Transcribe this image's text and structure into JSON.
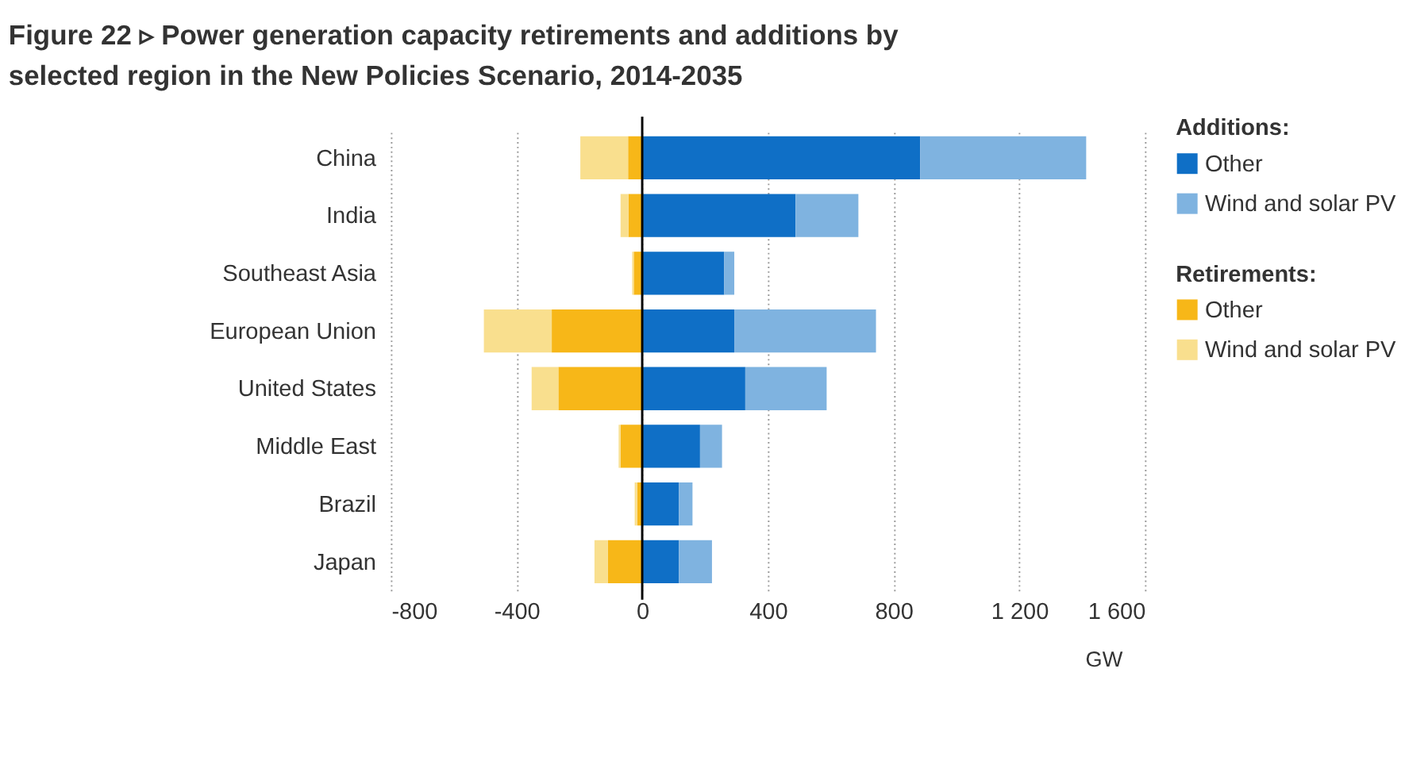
{
  "chart_data": {
    "type": "bar",
    "orientation": "horizontal",
    "stacked": true,
    "title": "Power generation capacity retirements and additions by selected region in the New Policies Scenario, 2014-2035",
    "annotations": [
      "Figure 22 ▹",
      "Additions:",
      "Retirements:"
    ],
    "xlabel": "GW",
    "categories": [
      "China",
      "India",
      "Southeast Asia",
      "European Union",
      "United States",
      "Middle East",
      "Brazil",
      "Japan"
    ],
    "series": [
      {
        "name": "Other",
        "color": "#0f6fc6",
        "values": [
          885,
          488,
          261,
          293,
          328,
          184,
          117,
          117
        ]
      },
      {
        "name": "Wind and solar PV",
        "color": "#7fb3e0",
        "values": [
          528,
          200,
          32,
          451,
          259,
          70,
          43,
          105
        ]
      },
      {
        "name": "Other",
        "color": "#f7b718",
        "values": [
          -45,
          -44,
          -27,
          -288,
          -267,
          -69,
          -16,
          -109
        ]
      },
      {
        "name": "Wind and solar PV",
        "color": "#f9df8e",
        "values": [
          -152,
          -25,
          -5,
          -216,
          -85,
          -6,
          -8,
          -43
        ]
      }
    ],
    "xlim": [
      -800,
      1600
    ],
    "xticks": [
      -800,
      -400,
      0,
      400,
      800,
      {
        "value": 1200,
        "label": "1 200"
      },
      {
        "value": 1600,
        "label": "1 600"
      }
    ],
    "grid": "x",
    "legend": "top right"
  }
}
